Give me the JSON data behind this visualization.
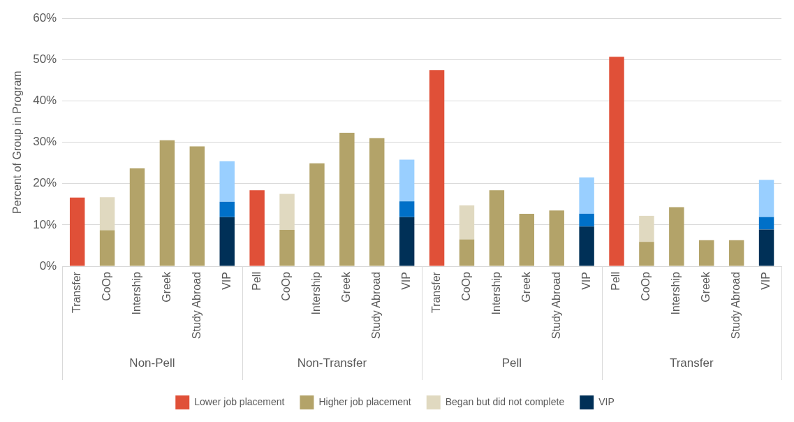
{
  "chart_data": {
    "type": "bar",
    "stacked": true,
    "ylabel": "Percent of Group in Program",
    "categories": [
      "Transfer",
      "CoOp",
      "Intership",
      "Greek",
      "Study Abroad",
      "VIP",
      "Pell",
      "CoOp",
      "Intership",
      "Greek",
      "Study Abroad",
      "VIP",
      "Transfer",
      "CoOp",
      "Intership",
      "Greek",
      "Study Abroad",
      "VIP",
      "Pell",
      "CoOp",
      "Intership",
      "Greek",
      "Study Abroad",
      "VIP"
    ],
    "annotations": [
      "Non-Pell",
      "Non-Transfer",
      "Pell",
      "Transfer"
    ],
    "series": [
      {
        "name": "Lower job placement",
        "color": "#e05038",
        "values": [
          16.6,
          null,
          null,
          null,
          null,
          null,
          18.4,
          null,
          null,
          null,
          null,
          null,
          47.5,
          null,
          null,
          null,
          null,
          null,
          50.7,
          null,
          null,
          null,
          null,
          null
        ]
      },
      {
        "name": "Higher job placement",
        "color": "#b3a369",
        "values": [
          null,
          8.7,
          23.7,
          30.5,
          29.0,
          null,
          null,
          8.8,
          24.9,
          32.3,
          31.0,
          null,
          null,
          6.5,
          18.4,
          12.7,
          13.5,
          null,
          null,
          5.9,
          14.3,
          6.3,
          6.3,
          null
        ]
      },
      {
        "name": "Began but did not complete",
        "color": "#e0d9c0",
        "values": [
          null,
          8.0,
          null,
          null,
          null,
          null,
          null,
          8.7,
          null,
          null,
          null,
          null,
          null,
          8.2,
          null,
          null,
          null,
          null,
          null,
          6.3,
          null,
          null,
          null,
          null
        ]
      },
      {
        "name": "VIP",
        "color": "#003057",
        "values": [
          null,
          null,
          null,
          null,
          null,
          11.9,
          null,
          null,
          null,
          null,
          null,
          11.9,
          null,
          null,
          null,
          null,
          null,
          9.6,
          null,
          null,
          null,
          null,
          null,
          8.9
        ]
      },
      {
        "color": "#0070c8",
        "values": [
          null,
          null,
          null,
          null,
          null,
          3.7,
          null,
          null,
          null,
          null,
          null,
          3.8,
          null,
          null,
          null,
          null,
          null,
          3.1,
          null,
          null,
          null,
          null,
          null,
          3.0
        ]
      },
      {
        "color": "#99cfff",
        "values": [
          null,
          null,
          null,
          null,
          null,
          9.8,
          null,
          null,
          null,
          null,
          null,
          10.1,
          null,
          null,
          null,
          null,
          null,
          8.8,
          null,
          null,
          null,
          null,
          null,
          9.0
        ]
      }
    ],
    "ylim": [
      0,
      60
    ],
    "yticks": [
      {
        "value": 0,
        "label": "0%"
      },
      {
        "value": 10,
        "label": "10%"
      },
      {
        "value": 20,
        "label": "20%"
      },
      {
        "value": 30,
        "label": "30%"
      },
      {
        "value": 40,
        "label": "40%"
      },
      {
        "value": 50,
        "label": "50%"
      },
      {
        "value": 60,
        "label": "60%"
      }
    ],
    "grid": "y",
    "legend": "bottom"
  }
}
